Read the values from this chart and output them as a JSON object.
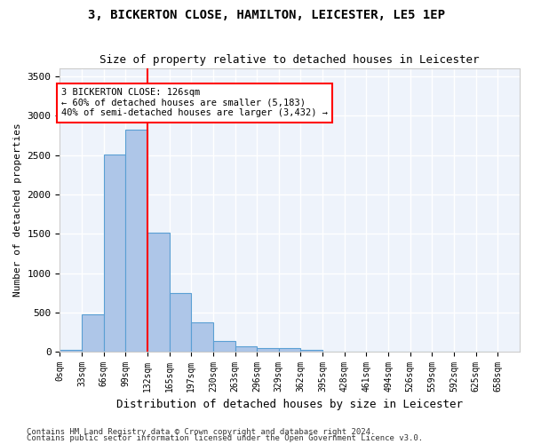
{
  "title": "3, BICKERTON CLOSE, HAMILTON, LEICESTER, LE5 1EP",
  "subtitle": "Size of property relative to detached houses in Leicester",
  "xlabel": "Distribution of detached houses by size in Leicester",
  "ylabel": "Number of detached properties",
  "bar_color": "#aec6e8",
  "bar_edge_color": "#5a9fd4",
  "bg_color": "#eef3fb",
  "grid_color": "#ffffff",
  "bin_labels": [
    "0sqm",
    "33sqm",
    "66sqm",
    "99sqm",
    "132sqm",
    "165sqm",
    "197sqm",
    "230sqm",
    "263sqm",
    "296sqm",
    "329sqm",
    "362sqm",
    "395sqm",
    "428sqm",
    "461sqm",
    "494sqm",
    "526sqm",
    "559sqm",
    "592sqm",
    "625sqm",
    "658sqm"
  ],
  "bar_values": [
    20,
    475,
    2510,
    2820,
    1510,
    750,
    380,
    135,
    65,
    50,
    50,
    25,
    0,
    0,
    0,
    0,
    0,
    0,
    0,
    0
  ],
  "annotation_text": "3 BICKERTON CLOSE: 126sqm\n← 60% of detached houses are smaller (5,183)\n40% of semi-detached houses are larger (3,432) →",
  "ylim": [
    0,
    3600
  ],
  "yticks": [
    0,
    500,
    1000,
    1500,
    2000,
    2500,
    3000,
    3500
  ],
  "footer_line1": "Contains HM Land Registry data © Crown copyright and database right 2024.",
  "footer_line2": "Contains public sector information licensed under the Open Government Licence v3.0."
}
